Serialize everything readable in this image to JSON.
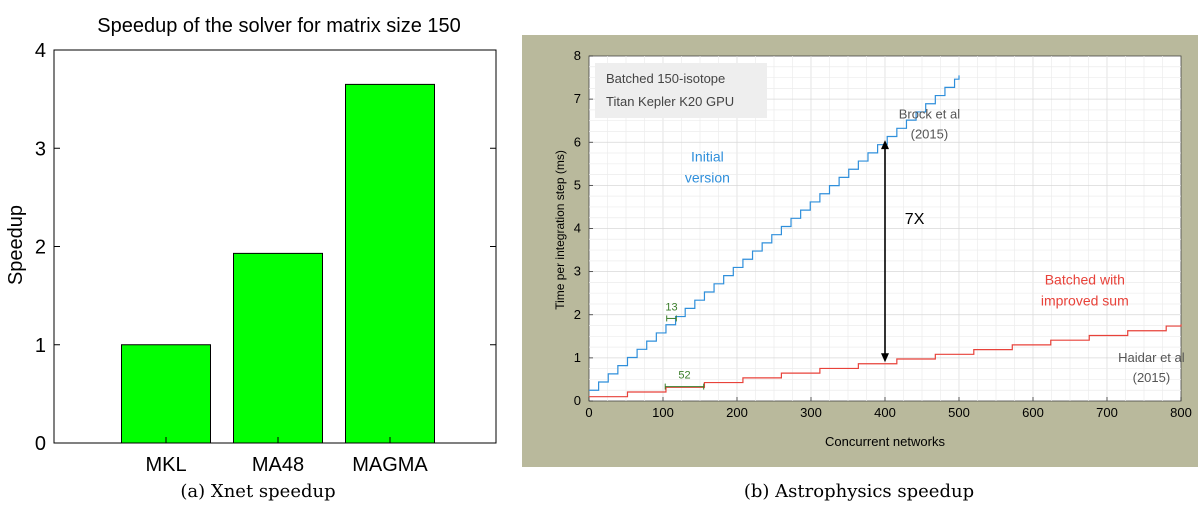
{
  "chart_data": [
    {
      "type": "bar",
      "title": "Speedup of the solver for matrix size 150",
      "ylabel": "Speedup",
      "xlabel": "",
      "categories": [
        "MKL",
        "MA48",
        "MAGMA"
      ],
      "values": [
        1.0,
        1.93,
        3.65
      ],
      "ylim": [
        0,
        4
      ],
      "yticks": [
        "0",
        "1",
        "2",
        "3",
        "4"
      ],
      "bar_color": "#00ff00",
      "grid": false,
      "caption": "(a) Xnet speedup"
    },
    {
      "type": "line",
      "xlabel": "Concurrent networks",
      "ylabel": "Time per integration step (ms)",
      "xlim": [
        0,
        800
      ],
      "ylim": [
        0,
        8
      ],
      "xticks": [
        "0",
        "100",
        "200",
        "300",
        "400",
        "500",
        "600",
        "700",
        "800"
      ],
      "yticks": [
        "0",
        "1",
        "2",
        "3",
        "4",
        "5",
        "6",
        "7",
        "8"
      ],
      "grid": true,
      "frame_color": "#b9b99c",
      "info_box": [
        "Batched 150-isotope",
        "Titan Kepler K20 GPU"
      ],
      "series": [
        {
          "name": "Initial version",
          "label_lines": [
            "Initial",
            "version"
          ],
          "color": "#2f8fdb",
          "step_width": 13,
          "x": [
            0,
            500
          ],
          "y": [
            0.25,
            7.55
          ]
        },
        {
          "name": "Batched with improved sum",
          "label_lines": [
            "Batched with",
            "improved sum"
          ],
          "color": "#e8423a",
          "step_width": 52,
          "x": [
            0,
            800
          ],
          "y": [
            0.1,
            1.78
          ]
        }
      ],
      "annotations": [
        {
          "text": [
            "Brock et al",
            "(2015)"
          ],
          "x": 460,
          "y": 6.55,
          "color": "#555555"
        },
        {
          "text": [
            "Haidar et al",
            "(2015)"
          ],
          "x": 760,
          "y": 0.9,
          "color": "#555555"
        },
        {
          "text": [
            "7X"
          ],
          "x": 440,
          "y": 4.1,
          "color": "#000000",
          "arrow_x": 400,
          "arrow_y": [
            6.05,
            0.9
          ]
        },
        {
          "text": [
            "13"
          ],
          "x": 110,
          "y": 2.1,
          "color": "#3a7d2a",
          "span": [
            105,
            118
          ]
        },
        {
          "text": [
            "52"
          ],
          "x": 125,
          "y": 0.52,
          "color": "#3a7d2a",
          "span": [
            103,
            155
          ]
        }
      ],
      "caption": "(b) Astrophysics speedup"
    }
  ]
}
